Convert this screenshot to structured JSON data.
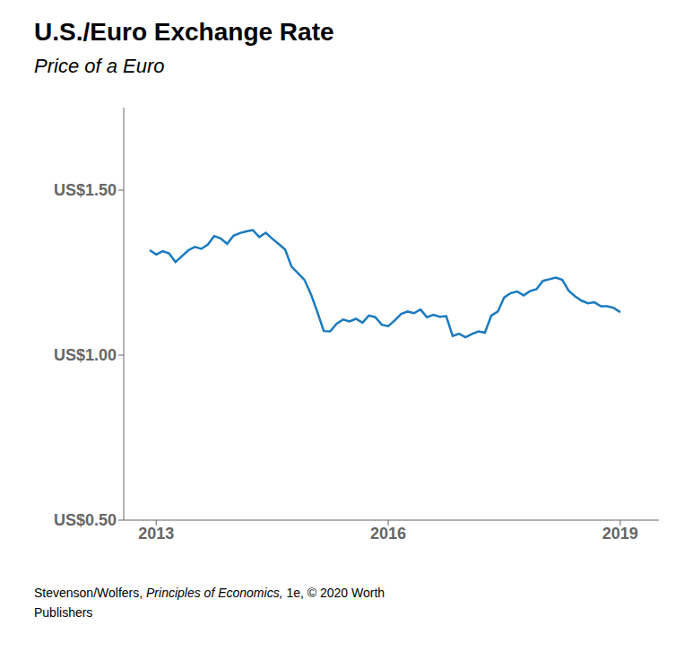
{
  "chart_data": {
    "type": "line",
    "title": "U.S./Euro Exchange Rate",
    "subtitle": "Price of a Euro",
    "caption": [
      [
        "Stevenson/Wolfers, ",
        "Principles of Economics,",
        " 1e, © 2020 Worth"
      ],
      [
        "Publishers"
      ]
    ],
    "color": "#1a7abf",
    "grid": false,
    "xlim": [
      2012.58,
      2019.5
    ],
    "xticks": [
      2013,
      2016,
      2019
    ],
    "ylim": [
      0.5,
      1.75
    ],
    "yticks": [
      {
        "value": 0.5,
        "label": "US$0.50"
      },
      {
        "value": 1.0,
        "label": "US$1.00"
      },
      {
        "value": 1.5,
        "label": "US$1.50"
      }
    ],
    "x": [
      2012.917,
      2013.0,
      2013.083,
      2013.167,
      2013.25,
      2013.333,
      2013.417,
      2013.5,
      2013.583,
      2013.667,
      2013.75,
      2013.833,
      2013.917,
      2014.0,
      2014.083,
      2014.167,
      2014.25,
      2014.333,
      2014.417,
      2014.5,
      2014.583,
      2014.667,
      2014.75,
      2014.833,
      2014.917,
      2015.0,
      2015.083,
      2015.167,
      2015.25,
      2015.333,
      2015.417,
      2015.5,
      2015.583,
      2015.667,
      2015.75,
      2015.833,
      2015.917,
      2016.0,
      2016.083,
      2016.167,
      2016.25,
      2016.333,
      2016.417,
      2016.5,
      2016.583,
      2016.667,
      2016.75,
      2016.833,
      2016.917,
      2017.0,
      2017.083,
      2017.167,
      2017.25,
      2017.333,
      2017.417,
      2017.5,
      2017.583,
      2017.667,
      2017.75,
      2017.833,
      2017.917,
      2018.0,
      2018.083,
      2018.167,
      2018.25,
      2018.333,
      2018.417,
      2018.5,
      2018.583,
      2018.667,
      2018.75,
      2018.833,
      2018.917,
      2019.0
    ],
    "values": [
      1.318,
      1.305,
      1.315,
      1.308,
      1.282,
      1.3,
      1.318,
      1.328,
      1.322,
      1.335,
      1.361,
      1.354,
      1.337,
      1.362,
      1.37,
      1.375,
      1.379,
      1.358,
      1.371,
      1.353,
      1.337,
      1.32,
      1.268,
      1.248,
      1.228,
      1.185,
      1.131,
      1.073,
      1.072,
      1.095,
      1.108,
      1.102,
      1.11,
      1.098,
      1.12,
      1.115,
      1.092,
      1.088,
      1.105,
      1.125,
      1.132,
      1.127,
      1.138,
      1.115,
      1.122,
      1.116,
      1.118,
      1.058,
      1.065,
      1.054,
      1.064,
      1.072,
      1.068,
      1.12,
      1.132,
      1.175,
      1.188,
      1.193,
      1.181,
      1.194,
      1.2,
      1.225,
      1.23,
      1.235,
      1.228,
      1.195,
      1.178,
      1.165,
      1.157,
      1.16,
      1.148,
      1.148,
      1.143,
      1.13
    ]
  }
}
